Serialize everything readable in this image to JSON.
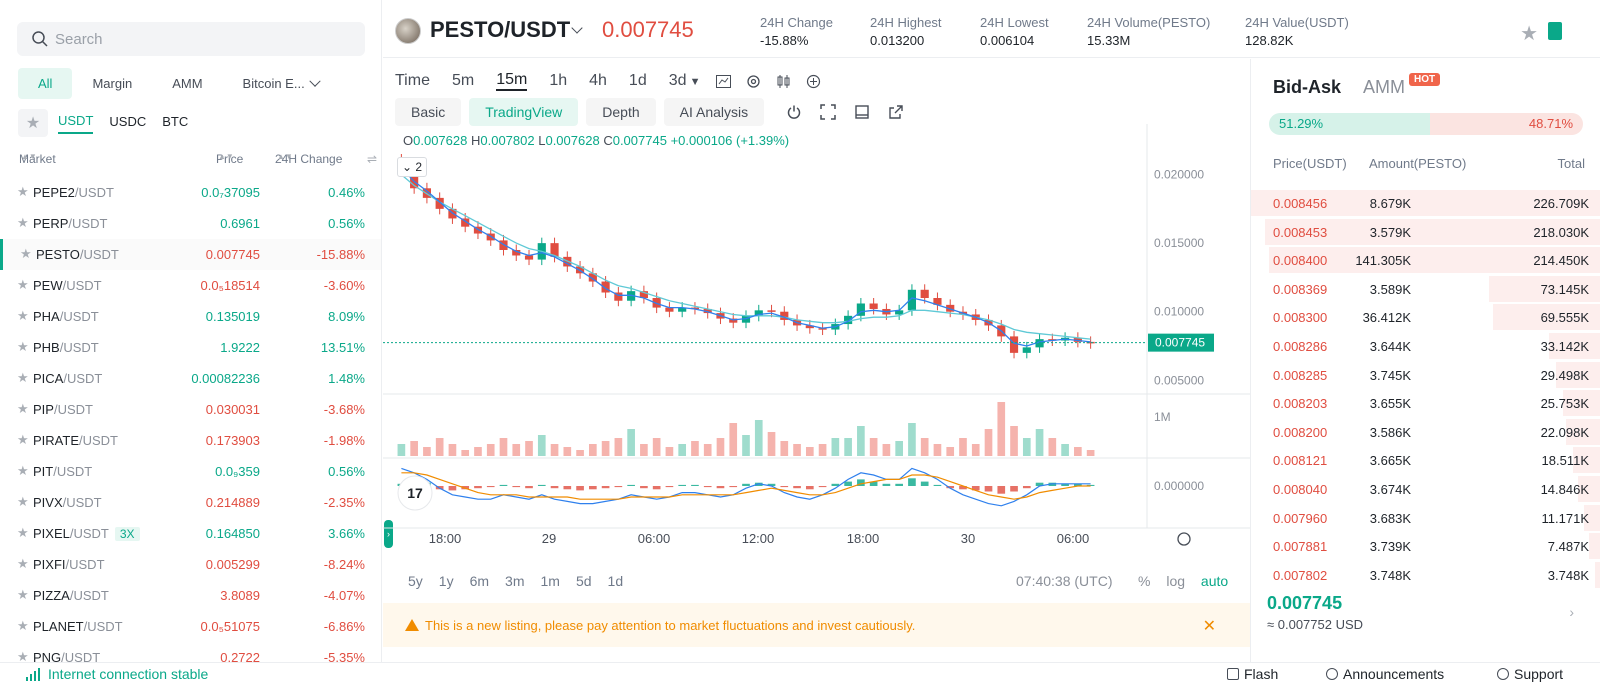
{
  "search": {
    "placeholder": "Search"
  },
  "filter_tabs": [
    "All",
    "Margin",
    "AMM",
    "Bitcoin E..."
  ],
  "quote_tabs": [
    "USDT",
    "USDC",
    "BTC"
  ],
  "market_header": {
    "market": "Market",
    "price": "Price",
    "change": "24H Change"
  },
  "markets": [
    {
      "base": "PEPE2",
      "quote": "/USDT",
      "price": "0.0₇37095",
      "change": "0.46%",
      "dir": "up"
    },
    {
      "base": "PERP",
      "quote": "/USDT",
      "price": "0.6961",
      "change": "0.56%",
      "dir": "up"
    },
    {
      "base": "PESTO",
      "quote": "/USDT",
      "price": "0.007745",
      "change": "-15.88%",
      "dir": "down"
    },
    {
      "base": "PEW",
      "quote": "/USDT",
      "price": "0.0₅18514",
      "change": "-3.60%",
      "dir": "down"
    },
    {
      "base": "PHA",
      "quote": "/USDT",
      "price": "0.135019",
      "change": "8.09%",
      "dir": "up"
    },
    {
      "base": "PHB",
      "quote": "/USDT",
      "price": "1.9222",
      "change": "13.51%",
      "dir": "up"
    },
    {
      "base": "PICA",
      "quote": "/USDT",
      "price": "0.00082236",
      "change": "1.48%",
      "dir": "up"
    },
    {
      "base": "PIP",
      "quote": "/USDT",
      "price": "0.030031",
      "change": "-3.68%",
      "dir": "down"
    },
    {
      "base": "PIRATE",
      "quote": "/USDT",
      "price": "0.173903",
      "change": "-1.98%",
      "dir": "down"
    },
    {
      "base": "PIT",
      "quote": "/USDT",
      "price": "0.0₉359",
      "change": "0.56%",
      "dir": "up"
    },
    {
      "base": "PIVX",
      "quote": "/USDT",
      "price": "0.214889",
      "change": "-2.35%",
      "dir": "down"
    },
    {
      "base": "PIXEL",
      "quote": "/USDT",
      "price": "0.164850",
      "change": "3.66%",
      "dir": "up",
      "leverage": "3X"
    },
    {
      "base": "PIXFI",
      "quote": "/USDT",
      "price": "0.005299",
      "change": "-8.24%",
      "dir": "down"
    },
    {
      "base": "PIZZA",
      "quote": "/USDT",
      "price": "3.8089",
      "change": "-4.07%",
      "dir": "down"
    },
    {
      "base": "PLANET",
      "quote": "/USDT",
      "price": "0.0₅51075",
      "change": "-6.86%",
      "dir": "down"
    },
    {
      "base": "PNG",
      "quote": "/USDT",
      "price": "0.2722",
      "change": "-5.35%",
      "dir": "down"
    }
  ],
  "header": {
    "symbol": "PESTO/USDT",
    "last_price": "0.007745",
    "stats": [
      {
        "label": "24H Change",
        "value": "-15.88%",
        "color": "red"
      },
      {
        "label": "24H Highest",
        "value": "0.013200"
      },
      {
        "label": "24H Lowest",
        "value": "0.006104"
      },
      {
        "label": "24H Volume(PESTO)",
        "value": "15.33M"
      },
      {
        "label": "24H Value(USDT)",
        "value": "128.82K"
      }
    ]
  },
  "intervals": [
    "Time",
    "5m",
    "15m",
    "1h",
    "4h",
    "1d",
    "3d"
  ],
  "active_interval": "15m",
  "view_tabs": [
    "Basic",
    "TradingView",
    "Depth",
    "AI Analysis"
  ],
  "active_view": "TradingView",
  "ohlc": {
    "o": "0.007628",
    "h": "0.007802",
    "l": "0.007628",
    "c": "0.007745",
    "change": "+0.000106 (+1.39%)"
  },
  "indicator_badge": "2",
  "chart_data": {
    "type": "line",
    "y_ticks": [
      "0.020000",
      "0.015000",
      "0.010000",
      "0.005000"
    ],
    "x_ticks": [
      "18:00",
      "29",
      "06:00",
      "12:00",
      "18:00",
      "30",
      "06:00"
    ],
    "volume_tick": "1M",
    "macd_tick": "0.000000",
    "last_price_label": "0.007745",
    "ylim": [
      0.004,
      0.0215
    ],
    "close": [
      0.0205,
      0.019,
      0.0183,
      0.0175,
      0.0168,
      0.0162,
      0.0157,
      0.0152,
      0.0145,
      0.0141,
      0.0138,
      0.015,
      0.014,
      0.0133,
      0.0128,
      0.0122,
      0.0114,
      0.0108,
      0.0115,
      0.011,
      0.0103,
      0.01,
      0.0103,
      0.0102,
      0.0099,
      0.0095,
      0.0092,
      0.0097,
      0.0101,
      0.01,
      0.0094,
      0.009,
      0.0088,
      0.0087,
      0.0091,
      0.0097,
      0.0106,
      0.0102,
      0.0098,
      0.0101,
      0.0116,
      0.011,
      0.0105,
      0.01,
      0.0098,
      0.0094,
      0.009,
      0.0082,
      0.007,
      0.0074,
      0.008,
      0.0079,
      0.0081,
      0.0078,
      0.0077
    ],
    "ma_fast": [
      0.0205,
      0.0195,
      0.0188,
      0.018,
      0.0172,
      0.0166,
      0.016,
      0.0155,
      0.0149,
      0.0144,
      0.0141,
      0.0143,
      0.014,
      0.0135,
      0.013,
      0.0124,
      0.0117,
      0.0112,
      0.0112,
      0.011,
      0.0106,
      0.0103,
      0.0103,
      0.0102,
      0.01,
      0.0097,
      0.0094,
      0.0095,
      0.0098,
      0.0099,
      0.0096,
      0.0092,
      0.009,
      0.0088,
      0.0089,
      0.0093,
      0.01,
      0.0101,
      0.01,
      0.0101,
      0.011,
      0.0108,
      0.0105,
      0.0102,
      0.0099,
      0.0096,
      0.0092,
      0.0086,
      0.0077,
      0.0075,
      0.0078,
      0.0079,
      0.008,
      0.0079,
      0.0078
    ],
    "ma_slow": [
      0.02,
      0.0192,
      0.0186,
      0.018,
      0.0175,
      0.017,
      0.0165,
      0.016,
      0.0155,
      0.015,
      0.0146,
      0.0144,
      0.0141,
      0.0137,
      0.0133,
      0.0128,
      0.0123,
      0.0119,
      0.0117,
      0.0114,
      0.0111,
      0.0108,
      0.0106,
      0.0104,
      0.0102,
      0.01,
      0.0098,
      0.0097,
      0.0097,
      0.0097,
      0.0096,
      0.0094,
      0.0093,
      0.0092,
      0.0092,
      0.0093,
      0.0095,
      0.0096,
      0.0096,
      0.0097,
      0.0101,
      0.0101,
      0.01,
      0.0099,
      0.0098,
      0.0096,
      0.0094,
      0.0091,
      0.0087,
      0.0085,
      0.0084,
      0.0083,
      0.0082,
      0.0081,
      0.008
    ],
    "volume": [
      0.2,
      0.25,
      0.15,
      0.3,
      0.2,
      0.1,
      0.15,
      0.2,
      0.3,
      0.2,
      0.25,
      0.35,
      0.2,
      0.15,
      0.1,
      0.2,
      0.25,
      0.3,
      0.45,
      0.2,
      0.3,
      0.15,
      0.2,
      0.25,
      0.2,
      0.3,
      0.55,
      0.35,
      0.6,
      0.4,
      0.25,
      0.2,
      0.15,
      0.2,
      0.3,
      0.3,
      0.5,
      0.3,
      0.2,
      0.25,
      0.55,
      0.3,
      0.2,
      0.15,
      0.3,
      0.2,
      0.45,
      0.9,
      0.5,
      0.3,
      0.45,
      0.3,
      0.2,
      0.15,
      0.1
    ],
    "macd_hist": [
      0.2,
      0.4,
      0.3,
      -0.3,
      -0.4,
      -0.3,
      -0.2,
      -0.1,
      0.1,
      -0.1,
      -0.2,
      0.1,
      -0.2,
      -0.3,
      -0.4,
      -0.3,
      -0.2,
      -0.1,
      0.1,
      -0.2,
      -0.3,
      -0.1,
      0.1,
      0.1,
      -0.1,
      -0.2,
      -0.1,
      0.2,
      0.3,
      0.2,
      -0.1,
      -0.2,
      -0.3,
      -0.1,
      0.2,
      0.4,
      0.6,
      0.4,
      0.2,
      0.2,
      0.7,
      0.4,
      0.1,
      -0.2,
      -0.3,
      -0.4,
      -0.5,
      -0.7,
      -0.5,
      -0.2,
      0.3,
      0.3,
      0.2,
      0.2,
      0.1
    ],
    "macd_line": [
      0.8,
      0.6,
      0.3,
      -0.1,
      -0.4,
      -0.5,
      -0.6,
      -0.6,
      -0.4,
      -0.5,
      -0.6,
      -0.4,
      -0.6,
      -0.7,
      -0.8,
      -0.8,
      -0.7,
      -0.6,
      -0.4,
      -0.5,
      -0.6,
      -0.5,
      -0.3,
      -0.3,
      -0.4,
      -0.5,
      -0.4,
      -0.1,
      0.1,
      0.0,
      -0.3,
      -0.5,
      -0.6,
      -0.4,
      -0.1,
      0.3,
      0.6,
      0.5,
      0.3,
      0.3,
      0.8,
      0.6,
      0.3,
      -0.1,
      -0.4,
      -0.6,
      -0.8,
      -0.9,
      -0.7,
      -0.4,
      0.0,
      0.1,
      0.1,
      0.1,
      0.1
    ],
    "signal_line": [
      0.6,
      0.6,
      0.5,
      0.3,
      0.1,
      -0.1,
      -0.3,
      -0.4,
      -0.4,
      -0.4,
      -0.5,
      -0.5,
      -0.5,
      -0.5,
      -0.6,
      -0.6,
      -0.6,
      -0.6,
      -0.5,
      -0.5,
      -0.5,
      -0.5,
      -0.4,
      -0.4,
      -0.4,
      -0.4,
      -0.4,
      -0.3,
      -0.2,
      -0.1,
      -0.2,
      -0.3,
      -0.4,
      -0.4,
      -0.3,
      -0.1,
      0.1,
      0.2,
      0.3,
      0.3,
      0.5,
      0.5,
      0.4,
      0.2,
      0.0,
      -0.2,
      -0.4,
      -0.5,
      -0.6,
      -0.5,
      -0.3,
      -0.2,
      -0.1,
      0.0,
      0.0
    ]
  },
  "ranges": [
    "5y",
    "1y",
    "6m",
    "3m",
    "1m",
    "5d",
    "1d"
  ],
  "clock": "07:40:38 (UTC)",
  "scale_opts": {
    "percent": "%",
    "log": "log",
    "auto": "auto"
  },
  "notice": "This is a new listing, please pay attention to market fluctuations and invest cautiously.",
  "book": {
    "tabs": [
      "Bid-Ask",
      "AMM"
    ],
    "hot": "HOT",
    "buy_ratio": "51.29%",
    "sell_ratio": "48.71%",
    "buy_fraction": 0.5129,
    "head": {
      "price": "Price(USDT)",
      "amount": "Amount(PESTO)",
      "total": "Total"
    },
    "asks": [
      {
        "price": "0.008456",
        "amount": "8.679K",
        "total": "226.709K",
        "depth": 1.0
      },
      {
        "price": "0.008453",
        "amount": "3.579K",
        "total": "218.030K",
        "depth": 0.96
      },
      {
        "price": "0.008400",
        "amount": "141.305K",
        "total": "214.450K",
        "depth": 0.95
      },
      {
        "price": "0.008369",
        "amount": "3.589K",
        "total": "73.145K",
        "depth": 0.32
      },
      {
        "price": "0.008300",
        "amount": "36.412K",
        "total": "69.555K",
        "depth": 0.31
      },
      {
        "price": "0.008286",
        "amount": "3.644K",
        "total": "33.142K",
        "depth": 0.15
      },
      {
        "price": "0.008285",
        "amount": "3.745K",
        "total": "29.498K",
        "depth": 0.13
      },
      {
        "price": "0.008203",
        "amount": "3.655K",
        "total": "25.753K",
        "depth": 0.11
      },
      {
        "price": "0.008200",
        "amount": "3.586K",
        "total": "22.098K",
        "depth": 0.1
      },
      {
        "price": "0.008121",
        "amount": "3.665K",
        "total": "18.511K",
        "depth": 0.08
      },
      {
        "price": "0.008040",
        "amount": "3.674K",
        "total": "14.846K",
        "depth": 0.065
      },
      {
        "price": "0.007960",
        "amount": "3.683K",
        "total": "11.171K",
        "depth": 0.05
      },
      {
        "price": "0.007881",
        "amount": "3.739K",
        "total": "7.487K",
        "depth": 0.033
      },
      {
        "price": "0.007802",
        "amount": "3.748K",
        "total": "3.748K",
        "depth": 0.017
      }
    ],
    "mid_price": "0.007745",
    "mid_fiat": "≈ 0.007752  USD"
  },
  "status": {
    "connection": "Internet connection stable",
    "flash": "Flash",
    "announcements": "Announcements",
    "support": "Support"
  },
  "colors": {
    "green": "#0aa889",
    "red": "#e04d40",
    "ma_fast": "#2f80ed",
    "ma_slow": "#5fc9d6",
    "signal": "#f08c00"
  }
}
